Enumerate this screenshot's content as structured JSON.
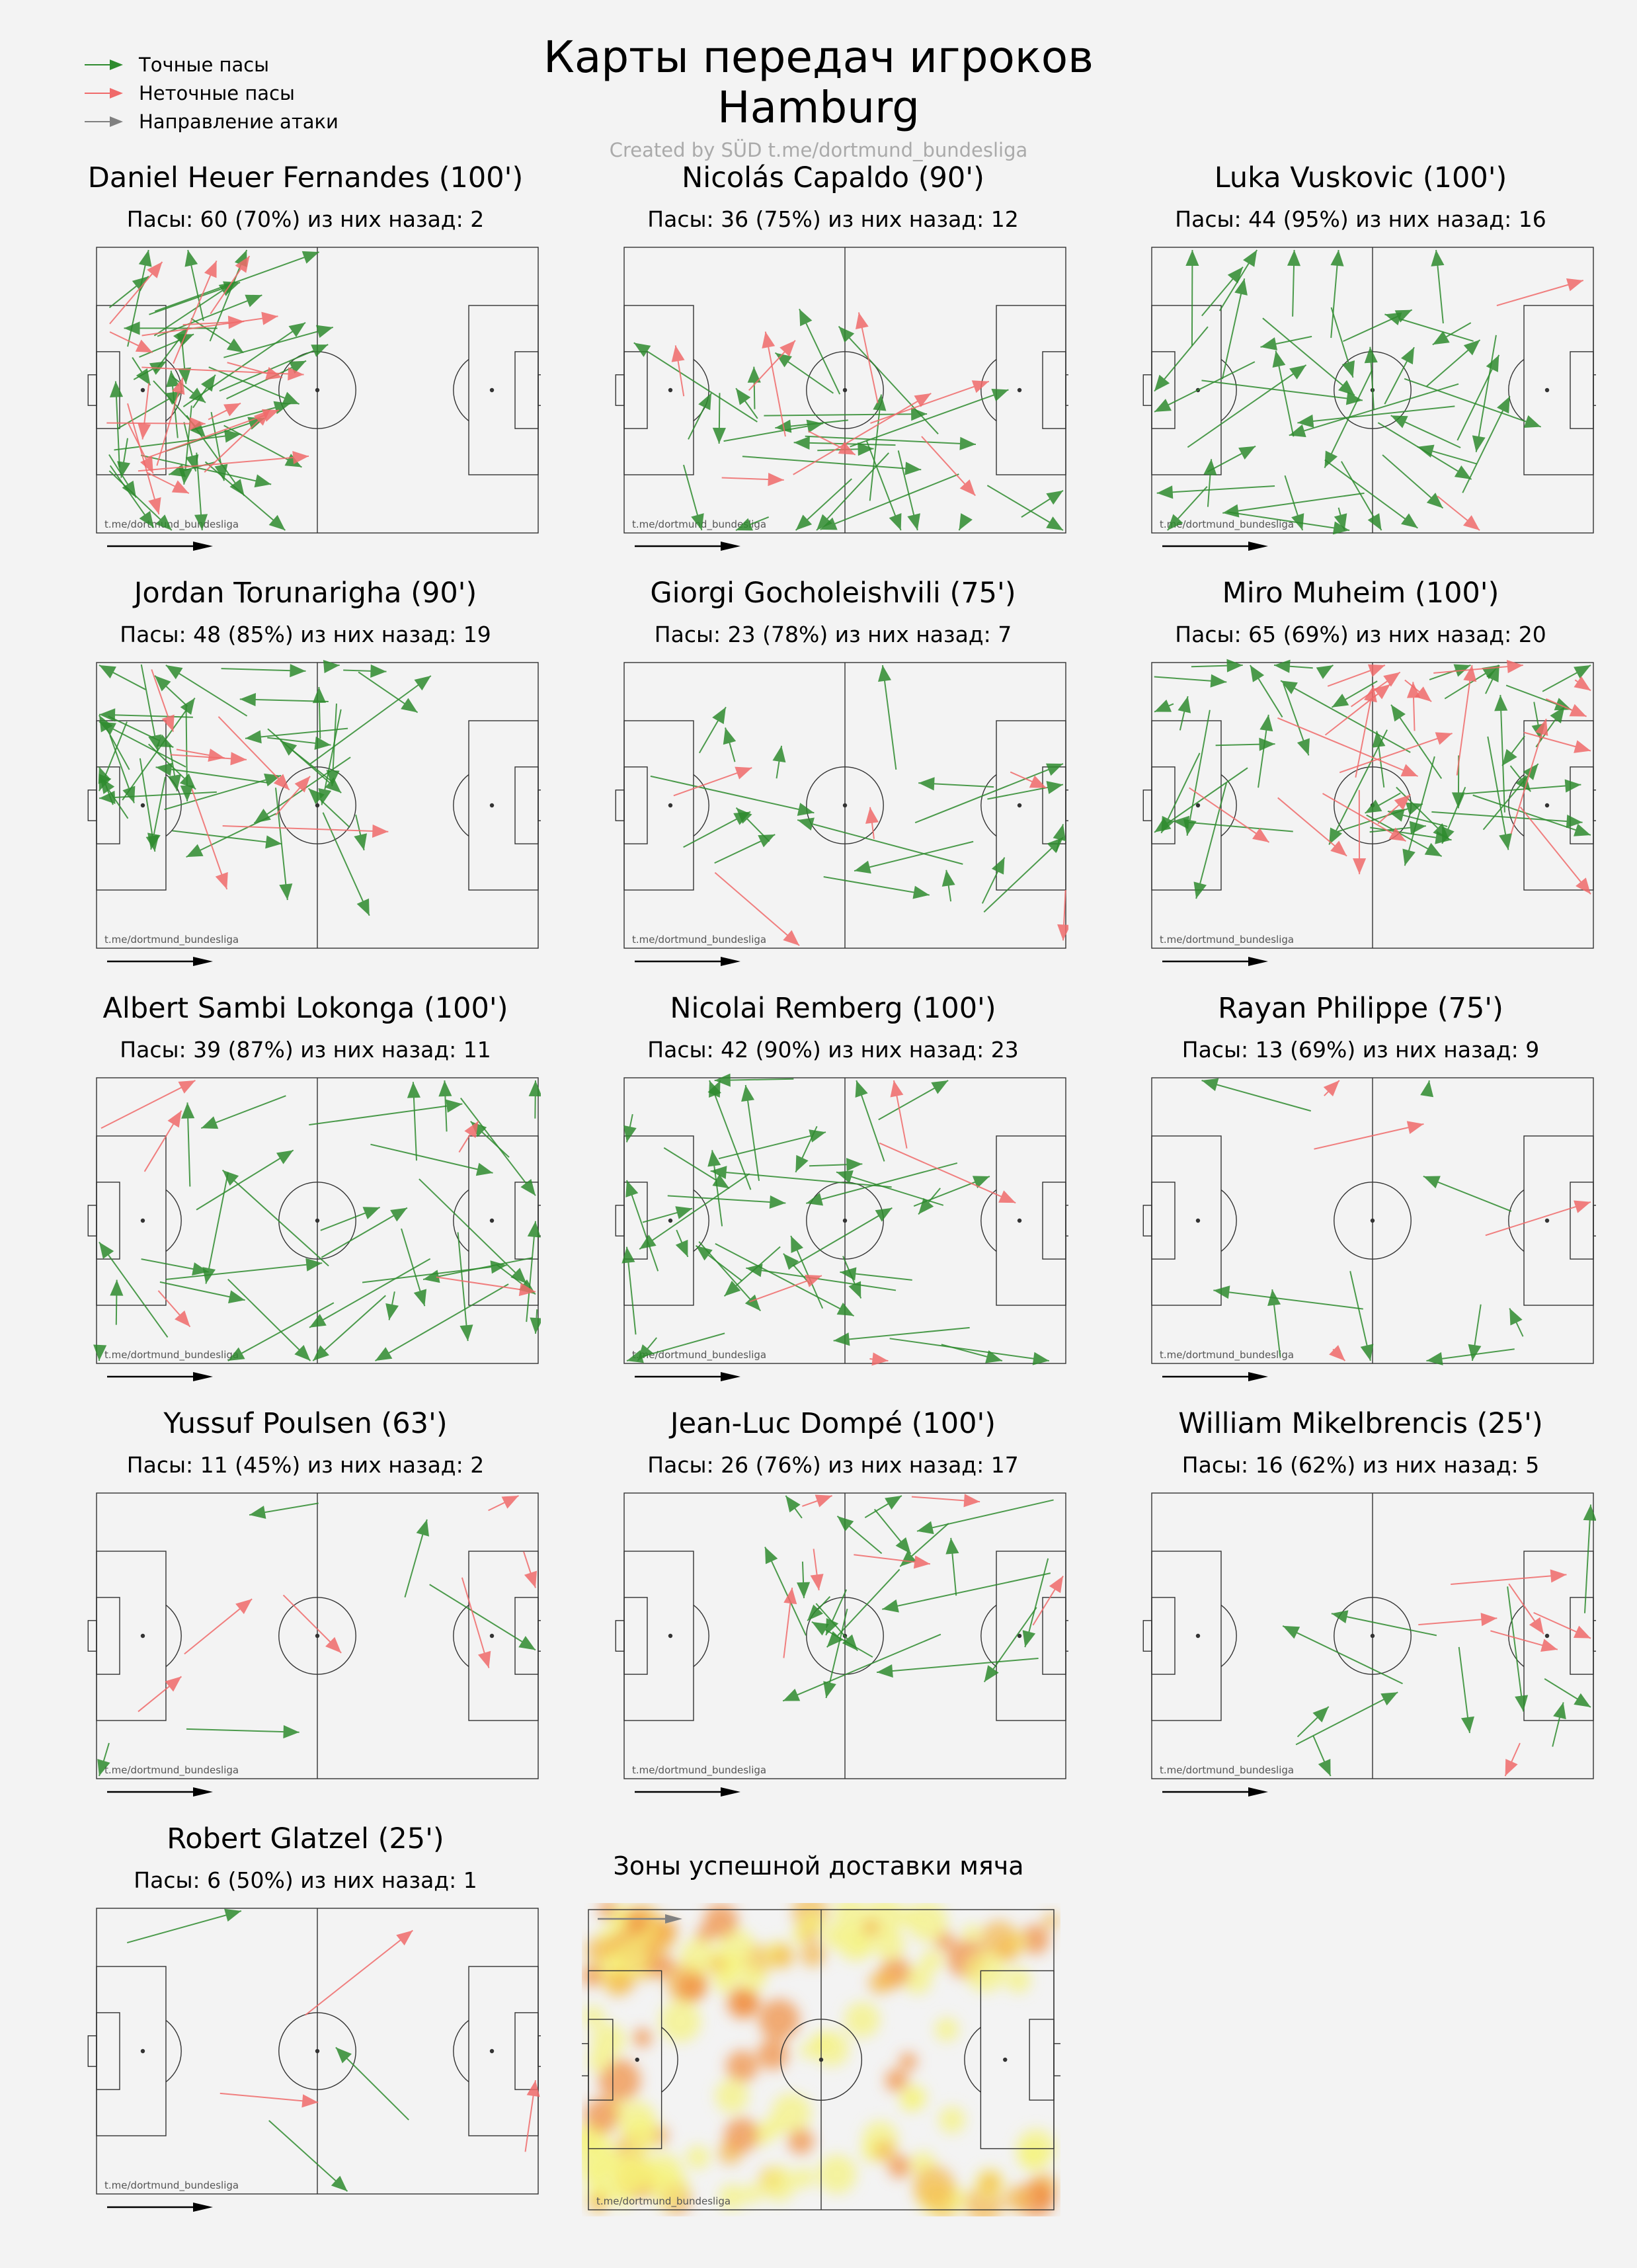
{
  "title_line1": "Карты передач игроков",
  "title_line2": "Hamburg",
  "credit": "Created by SÜD t.me/dortmund_bundesliga",
  "watermark": "t.me/dortmund_bundesliga",
  "legend": {
    "accurate": "Точные пасы",
    "inaccurate": "Неточные пасы",
    "direction": "Направление атаки"
  },
  "colors": {
    "accurate": "#2e8b2e",
    "inaccurate": "#f06a6a",
    "direction": "#808080",
    "pitch_line": "#333333",
    "heat_low": "#f5f27a",
    "heat_mid": "#f3b64b",
    "heat_high": "#ef8a3a"
  },
  "heatmap_title": "Зоны успешной доставки мяча",
  "chart_data": [
    {
      "type": "pass-map",
      "player": "Daniel Heuer Fernandes (100')",
      "stats": "Пасы: 60 (70%) из них назад: 2",
      "passes": 60,
      "accuracy_pct": 70,
      "backward": 2,
      "zone": "back"
    },
    {
      "type": "pass-map",
      "player": "Nicolás Capaldo (90')",
      "stats": "Пасы: 36 (75%) из них назад: 12",
      "passes": 36,
      "accuracy_pct": 75,
      "backward": 12,
      "zone": "mid-bottom"
    },
    {
      "type": "pass-map",
      "player": "Luka Vuskovic (100')",
      "stats": "Пасы: 44 (95%) из них назад: 16",
      "passes": 44,
      "accuracy_pct": 95,
      "backward": 16,
      "zone": "back-bottom"
    },
    {
      "type": "pass-map",
      "player": "Jordan Torunarigha (90')",
      "stats": "Пасы: 48 (85%) из них назад: 19",
      "passes": 48,
      "accuracy_pct": 85,
      "backward": 19,
      "zone": "back-top"
    },
    {
      "type": "pass-map",
      "player": "Giorgi Gocholeishvili (75')",
      "stats": "Пасы: 23 (78%) из них назад: 7",
      "passes": 23,
      "accuracy_pct": 78,
      "backward": 7,
      "zone": "bottom"
    },
    {
      "type": "pass-map",
      "player": "Miro Muheim (100')",
      "stats": "Пасы: 65 (69%) из них назад: 20",
      "passes": 65,
      "accuracy_pct": 69,
      "backward": 20,
      "zone": "top"
    },
    {
      "type": "pass-map",
      "player": "Albert Sambi Lokonga (100')",
      "stats": "Пасы: 39 (87%) из них назад: 11",
      "passes": 39,
      "accuracy_pct": 87,
      "backward": 11,
      "zone": "mid"
    },
    {
      "type": "pass-map",
      "player": "Nicolai Remberg (100')",
      "stats": "Пасы: 42 (90%) из них назад: 23",
      "passes": 42,
      "accuracy_pct": 90,
      "backward": 23,
      "zone": "mid-left"
    },
    {
      "type": "pass-map",
      "player": "Rayan Philippe (75')",
      "stats": "Пасы: 13 (69%) из них назад: 9",
      "passes": 13,
      "accuracy_pct": 69,
      "backward": 9,
      "zone": "mid-right"
    },
    {
      "type": "pass-map",
      "player": "Yussuf Poulsen (63')",
      "stats": "Пасы: 11 (45%) из них назад: 2",
      "passes": 11,
      "accuracy_pct": 45,
      "backward": 2,
      "zone": "mid"
    },
    {
      "type": "pass-map",
      "player": "Jean-Luc Dompé (100')",
      "stats": "Пасы: 26 (76%) из них назад: 17",
      "passes": 26,
      "accuracy_pct": 76,
      "backward": 17,
      "zone": "top-right"
    },
    {
      "type": "pass-map",
      "player": "William Mikelbrencis (25')",
      "stats": "Пасы: 16 (62%) из них назад: 5",
      "passes": 16,
      "accuracy_pct": 62,
      "backward": 5,
      "zone": "bottom-right"
    },
    {
      "type": "pass-map",
      "player": "Robert Glatzel (25')",
      "stats": "Пасы: 6 (50%) из них назад: 1",
      "passes": 6,
      "accuracy_pct": 50,
      "backward": 1,
      "zone": "mid"
    }
  ]
}
